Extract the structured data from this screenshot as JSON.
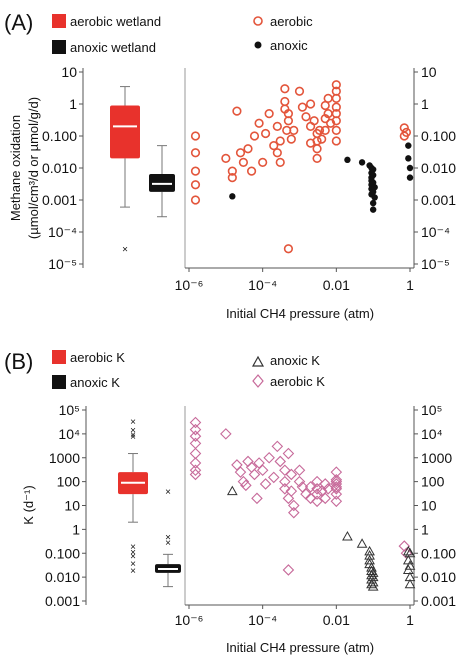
{
  "chart_data": [
    {
      "panel": "(A)",
      "type": "scatter",
      "title": "",
      "xlabel": "Initial CH4 pressure (atm)",
      "ylabel_lines": [
        "Methane oxidation",
        "(µmol/cm³/d or µmol/g/d)"
      ],
      "x_scale": "log",
      "y_scale": "log",
      "xlim": [
        1e-06,
        1
      ],
      "ylim": [
        1e-05,
        10
      ],
      "x_ticks": [
        {
          "value": 1e-06,
          "label": "10⁻⁶"
        },
        {
          "value": 0.0001,
          "label": "10⁻⁴"
        },
        {
          "value": 0.01,
          "label": "0.01"
        },
        {
          "value": 1,
          "label": "1"
        }
      ],
      "y_ticks": [
        {
          "value": 10,
          "label": "10"
        },
        {
          "value": 1,
          "label": "1"
        },
        {
          "value": 0.1,
          "label": "0.100"
        },
        {
          "value": 0.01,
          "label": "0.010"
        },
        {
          "value": 0.001,
          "label": "0.001"
        },
        {
          "value": 0.0001,
          "label": "10⁻⁴"
        },
        {
          "value": 1e-05,
          "label": "10⁻⁵"
        }
      ],
      "box_legend": [
        {
          "label": "aerobic wetland",
          "color": "#e8322c"
        },
        {
          "label": "anoxic wetland",
          "color": "#111111"
        }
      ],
      "series_legend": [
        {
          "label": "aerobic",
          "marker": "open-circle",
          "color": "#e3553b"
        },
        {
          "label": "anoxic",
          "marker": "filled-circle",
          "color": "#111111"
        }
      ],
      "boxplots": [
        {
          "name": "aerobic wetland",
          "color": "#e8322c",
          "median_color": "#ffffff",
          "whisker_low": 0.0006,
          "q1": 0.02,
          "median": 0.2,
          "q3": 0.9,
          "whisker_high": 3.5,
          "outliers": [
            3e-05
          ]
        },
        {
          "name": "anoxic wetland",
          "color": "#111111",
          "median_color": "#ffffff",
          "whisker_low": 0.0003,
          "q1": 0.0018,
          "median": 0.0032,
          "q3": 0.0065,
          "whisker_high": 0.05,
          "outliers": []
        }
      ],
      "series": [
        {
          "name": "aerobic",
          "marker": "open-circle",
          "color": "#e3553b",
          "points": [
            [
              1.5e-06,
              0.1
            ],
            [
              1.5e-06,
              0.03
            ],
            [
              1.5e-06,
              0.008
            ],
            [
              1.5e-06,
              0.003
            ],
            [
              1.5e-06,
              0.001
            ],
            [
              1e-05,
              0.02
            ],
            [
              1.5e-05,
              0.008
            ],
            [
              1.5e-05,
              0.005
            ],
            [
              2e-05,
              0.6
            ],
            [
              2.5e-05,
              0.03
            ],
            [
              3e-05,
              0.015
            ],
            [
              4e-05,
              0.04
            ],
            [
              5e-05,
              0.008
            ],
            [
              6e-05,
              0.1
            ],
            [
              8e-05,
              0.25
            ],
            [
              0.0001,
              0.015
            ],
            [
              0.00012,
              0.12
            ],
            [
              0.00015,
              0.5
            ],
            [
              0.0002,
              0.05
            ],
            [
              0.00025,
              0.2
            ],
            [
              0.00025,
              0.03
            ],
            [
              0.0003,
              0.015
            ],
            [
              0.0003,
              0.07
            ],
            [
              0.0004,
              3
            ],
            [
              0.0004,
              1.2
            ],
            [
              0.0004,
              0.7
            ],
            [
              0.00045,
              0.15
            ],
            [
              0.0005,
              0.5
            ],
            [
              0.0005,
              0.3
            ],
            [
              0.0005,
              3e-05
            ],
            [
              0.0006,
              0.08
            ],
            [
              0.0007,
              0.15
            ],
            [
              0.001,
              2.5
            ],
            [
              0.0012,
              0.8
            ],
            [
              0.0015,
              0.4
            ],
            [
              0.002,
              1
            ],
            [
              0.002,
              0.2
            ],
            [
              0.002,
              0.06
            ],
            [
              0.0025,
              0.3
            ],
            [
              0.003,
              0.12
            ],
            [
              0.003,
              0.07
            ],
            [
              0.003,
              0.04
            ],
            [
              0.003,
              0.02
            ],
            [
              0.0035,
              0.15
            ],
            [
              0.004,
              0.08
            ],
            [
              0.005,
              0.9
            ],
            [
              0.005,
              0.35
            ],
            [
              0.005,
              0.15
            ],
            [
              0.006,
              1.5
            ],
            [
              0.006,
              0.5
            ],
            [
              0.007,
              0.25
            ],
            [
              0.01,
              4
            ],
            [
              0.01,
              2.5
            ],
            [
              0.01,
              1.5
            ],
            [
              0.01,
              0.8
            ],
            [
              0.01,
              0.5
            ],
            [
              0.01,
              0.3
            ],
            [
              0.01,
              0.15
            ],
            [
              0.01,
              0.07
            ],
            [
              0.7,
              0.18
            ],
            [
              0.7,
              0.1
            ],
            [
              0.8,
              0.13
            ]
          ]
        },
        {
          "name": "anoxic",
          "marker": "filled-circle",
          "color": "#111111",
          "points": [
            [
              1.5e-05,
              0.0013
            ],
            [
              0.02,
              0.018
            ],
            [
              0.05,
              0.015
            ],
            [
              0.08,
              0.012
            ],
            [
              0.09,
              0.01
            ],
            [
              0.09,
              0.007
            ],
            [
              0.09,
              0.005
            ],
            [
              0.09,
              0.004
            ],
            [
              0.09,
              0.003
            ],
            [
              0.09,
              0.0022
            ],
            [
              0.09,
              0.0015
            ],
            [
              0.1,
              0.009
            ],
            [
              0.1,
              0.006
            ],
            [
              0.1,
              0.0035
            ],
            [
              0.1,
              0.0018
            ],
            [
              0.1,
              0.0008
            ],
            [
              0.1,
              0.0005
            ],
            [
              0.11,
              0.0025
            ],
            [
              0.11,
              0.0012
            ],
            [
              0.9,
              0.05
            ],
            [
              0.9,
              0.02
            ],
            [
              1,
              0.01
            ],
            [
              1,
              0.005
            ]
          ]
        }
      ]
    },
    {
      "panel": "(B)",
      "type": "scatter",
      "title": "",
      "xlabel": "Initial CH4 pressure (atm)",
      "ylabel": "K (d⁻¹)",
      "x_scale": "log",
      "y_scale": "log",
      "xlim": [
        1e-06,
        1
      ],
      "ylim": [
        0.001,
        100000
      ],
      "x_ticks": [
        {
          "value": 1e-06,
          "label": "10⁻⁶"
        },
        {
          "value": 0.0001,
          "label": "10⁻⁴"
        },
        {
          "value": 0.01,
          "label": "0.01"
        },
        {
          "value": 1,
          "label": "1"
        }
      ],
      "y_ticks": [
        {
          "value": 100000,
          "label": "10⁵"
        },
        {
          "value": 10000,
          "label": "10⁴"
        },
        {
          "value": 1000,
          "label": "1000"
        },
        {
          "value": 100,
          "label": "100"
        },
        {
          "value": 10,
          "label": "10"
        },
        {
          "value": 1,
          "label": "1"
        },
        {
          "value": 0.1,
          "label": "0.100"
        },
        {
          "value": 0.01,
          "label": "0.010"
        },
        {
          "value": 0.001,
          "label": "0.001"
        }
      ],
      "box_legend": [
        {
          "label": "aerobic K",
          "color": "#e8322c"
        },
        {
          "label": "anoxic K",
          "color": "#111111"
        }
      ],
      "series_legend": [
        {
          "label": "anoxic K",
          "marker": "open-triangle",
          "color": "#333333"
        },
        {
          "label": "aerobic K",
          "marker": "open-diamond",
          "color": "#c76a9a"
        }
      ],
      "boxplots": [
        {
          "name": "aerobic K",
          "color": "#e8322c",
          "median_color": "#ffffff",
          "whisker_low": 2,
          "q1": 30,
          "median": 90,
          "q3": 250,
          "whisker_high": 1500,
          "outliers": [
            35000,
            15000,
            10000,
            8000,
            0.2,
            0.12,
            0.08,
            0.04,
            0.02
          ]
        },
        {
          "name": "anoxic K",
          "color": "#111111",
          "median_color": "#ffffff",
          "whisker_low": 0.004,
          "q1": 0.015,
          "median": 0.022,
          "q3": 0.035,
          "whisker_high": 0.09,
          "outliers": [
            40,
            0.5,
            0.3
          ]
        }
      ],
      "series": [
        {
          "name": "aerobic K",
          "marker": "open-diamond",
          "color": "#c76a9a",
          "points": [
            [
              1.5e-06,
              30000
            ],
            [
              1.5e-06,
              15000
            ],
            [
              1.5e-06,
              8000
            ],
            [
              1.5e-06,
              4000
            ],
            [
              1.5e-06,
              1500
            ],
            [
              1.5e-06,
              600
            ],
            [
              1.5e-06,
              300
            ],
            [
              1.5e-06,
              200
            ],
            [
              1e-05,
              10000
            ],
            [
              2e-05,
              500
            ],
            [
              2.5e-05,
              250
            ],
            [
              3e-05,
              100
            ],
            [
              3.5e-05,
              70
            ],
            [
              4e-05,
              700
            ],
            [
              5e-05,
              400
            ],
            [
              6e-05,
              200
            ],
            [
              7e-05,
              20
            ],
            [
              8e-05,
              600
            ],
            [
              0.0001,
              300
            ],
            [
              0.00012,
              80
            ],
            [
              0.00015,
              1000
            ],
            [
              0.0002,
              150
            ],
            [
              0.00025,
              3000
            ],
            [
              0.0003,
              700
            ],
            [
              0.0004,
              300
            ],
            [
              0.0004,
              100
            ],
            [
              0.0004,
              50
            ],
            [
              0.0005,
              1500
            ],
            [
              0.0005,
              20
            ],
            [
              0.0005,
              0.02
            ],
            [
              0.0006,
              200
            ],
            [
              0.0006,
              40
            ],
            [
              0.0007,
              10
            ],
            [
              0.0007,
              5
            ],
            [
              0.001,
              300
            ],
            [
              0.001,
              100
            ],
            [
              0.0012,
              60
            ],
            [
              0.0015,
              30
            ],
            [
              0.002,
              60
            ],
            [
              0.002,
              20
            ],
            [
              0.003,
              100
            ],
            [
              0.003,
              50
            ],
            [
              0.003,
              30
            ],
            [
              0.003,
              15
            ],
            [
              0.004,
              40
            ],
            [
              0.005,
              80
            ],
            [
              0.005,
              20
            ],
            [
              0.006,
              50
            ],
            [
              0.01,
              250
            ],
            [
              0.01,
              120
            ],
            [
              0.01,
              100
            ],
            [
              0.01,
              80
            ],
            [
              0.01,
              60
            ],
            [
              0.01,
              50
            ],
            [
              0.01,
              30
            ],
            [
              0.01,
              15
            ],
            [
              0.7,
              0.2
            ],
            [
              0.8,
              0.1
            ]
          ]
        },
        {
          "name": "anoxic K",
          "marker": "open-triangle",
          "color": "#333333",
          "points": [
            [
              1.5e-05,
              40
            ],
            [
              0.02,
              0.5
            ],
            [
              0.05,
              0.25
            ],
            [
              0.08,
              0.12
            ],
            [
              0.08,
              0.08
            ],
            [
              0.08,
              0.05
            ],
            [
              0.08,
              0.035
            ],
            [
              0.09,
              0.025
            ],
            [
              0.09,
              0.018
            ],
            [
              0.09,
              0.012
            ],
            [
              0.09,
              0.008
            ],
            [
              0.09,
              0.005
            ],
            [
              0.1,
              0.015
            ],
            [
              0.1,
              0.01
            ],
            [
              0.1,
              0.006
            ],
            [
              0.1,
              0.004
            ],
            [
              0.9,
              0.12
            ],
            [
              0.9,
              0.05
            ],
            [
              0.9,
              0.02
            ],
            [
              1,
              0.1
            ],
            [
              1,
              0.03
            ],
            [
              1,
              0.01
            ],
            [
              1,
              0.005
            ]
          ]
        }
      ]
    }
  ]
}
